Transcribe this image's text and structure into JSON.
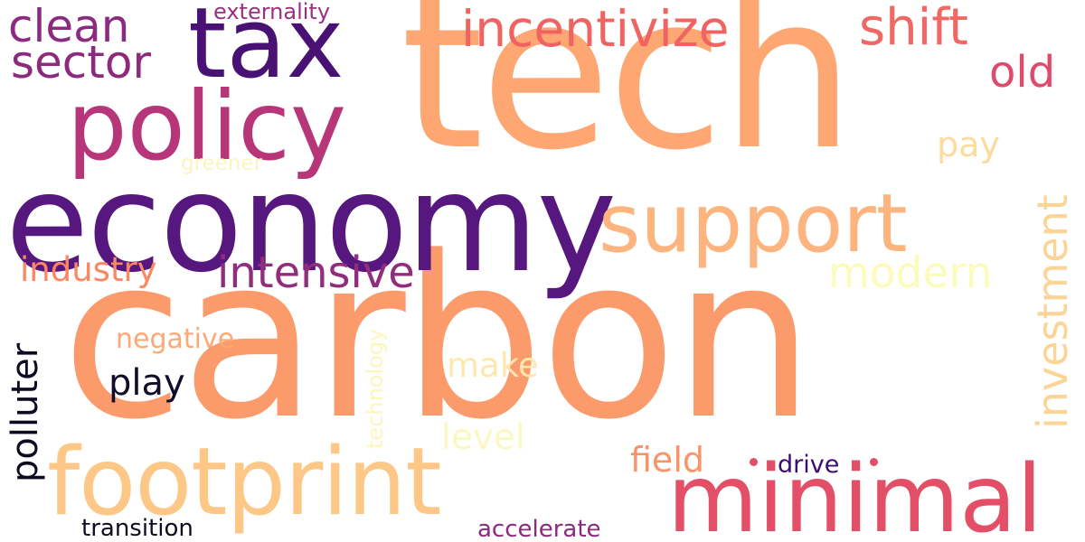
{
  "words": {
    "carbon": {
      "text": "carbon",
      "color": "#fb9a6b"
    },
    "tech": {
      "text": "tech",
      "color": "#fea772"
    },
    "economy": {
      "text": "economy",
      "color": "#56177f"
    },
    "tax": {
      "text": "tax",
      "color": "#4a1174"
    },
    "policy": {
      "text": "policy",
      "color": "#b63679"
    },
    "minimal": {
      "text": "minimal",
      "color": "#e24f66"
    },
    "footprint": {
      "text": "footprint",
      "color": "#fdc887"
    },
    "support": {
      "text": "support",
      "color": "#feb47f"
    },
    "incentivize": {
      "text": "incentivize",
      "color": "#ef6463"
    },
    "clean": {
      "text": "clean",
      "color": "#8a2a80"
    },
    "sector": {
      "text": "sector",
      "color": "#8d2a7d"
    },
    "shift": {
      "text": "shift",
      "color": "#ef6863"
    },
    "old": {
      "text": "old",
      "color": "#dd4a6b"
    },
    "intensive": {
      "text": "intensive",
      "color": "#912d7d"
    },
    "investment": {
      "text": "investment",
      "color": "#fcd496"
    },
    "modern": {
      "text": "modern",
      "color": "#fbfcbb"
    },
    "industry": {
      "text": "industry",
      "color": "#f98863"
    },
    "pay": {
      "text": "pay",
      "color": "#fddb9f"
    },
    "polluter": {
      "text": "polluter",
      "color": "#0e0b20"
    },
    "play": {
      "text": "play",
      "color": "#120d2b"
    },
    "negative": {
      "text": "negative",
      "color": "#fca877"
    },
    "make": {
      "text": "make",
      "color": "#fde8b0"
    },
    "level": {
      "text": "level",
      "color": "#fbf8c4"
    },
    "field": {
      "text": "field",
      "color": "#fa9468"
    },
    "drive": {
      "text": "drive",
      "color": "#3b0f70"
    },
    "technology": {
      "text": "technology",
      "color": "#fcf5bc"
    },
    "transition": {
      "text": "transition",
      "color": "#0f0c22"
    },
    "accelerate": {
      "text": "accelerate",
      "color": "#8a2a7e"
    },
    "externality": {
      "text": "externality",
      "color": "#9a3180"
    },
    "greener": {
      "text": "greener",
      "color": "#fcf3c2"
    }
  },
  "dots": {
    "dot_left": {
      "color": "#e24f66"
    },
    "dot_right": {
      "color": "#e24f66"
    }
  }
}
